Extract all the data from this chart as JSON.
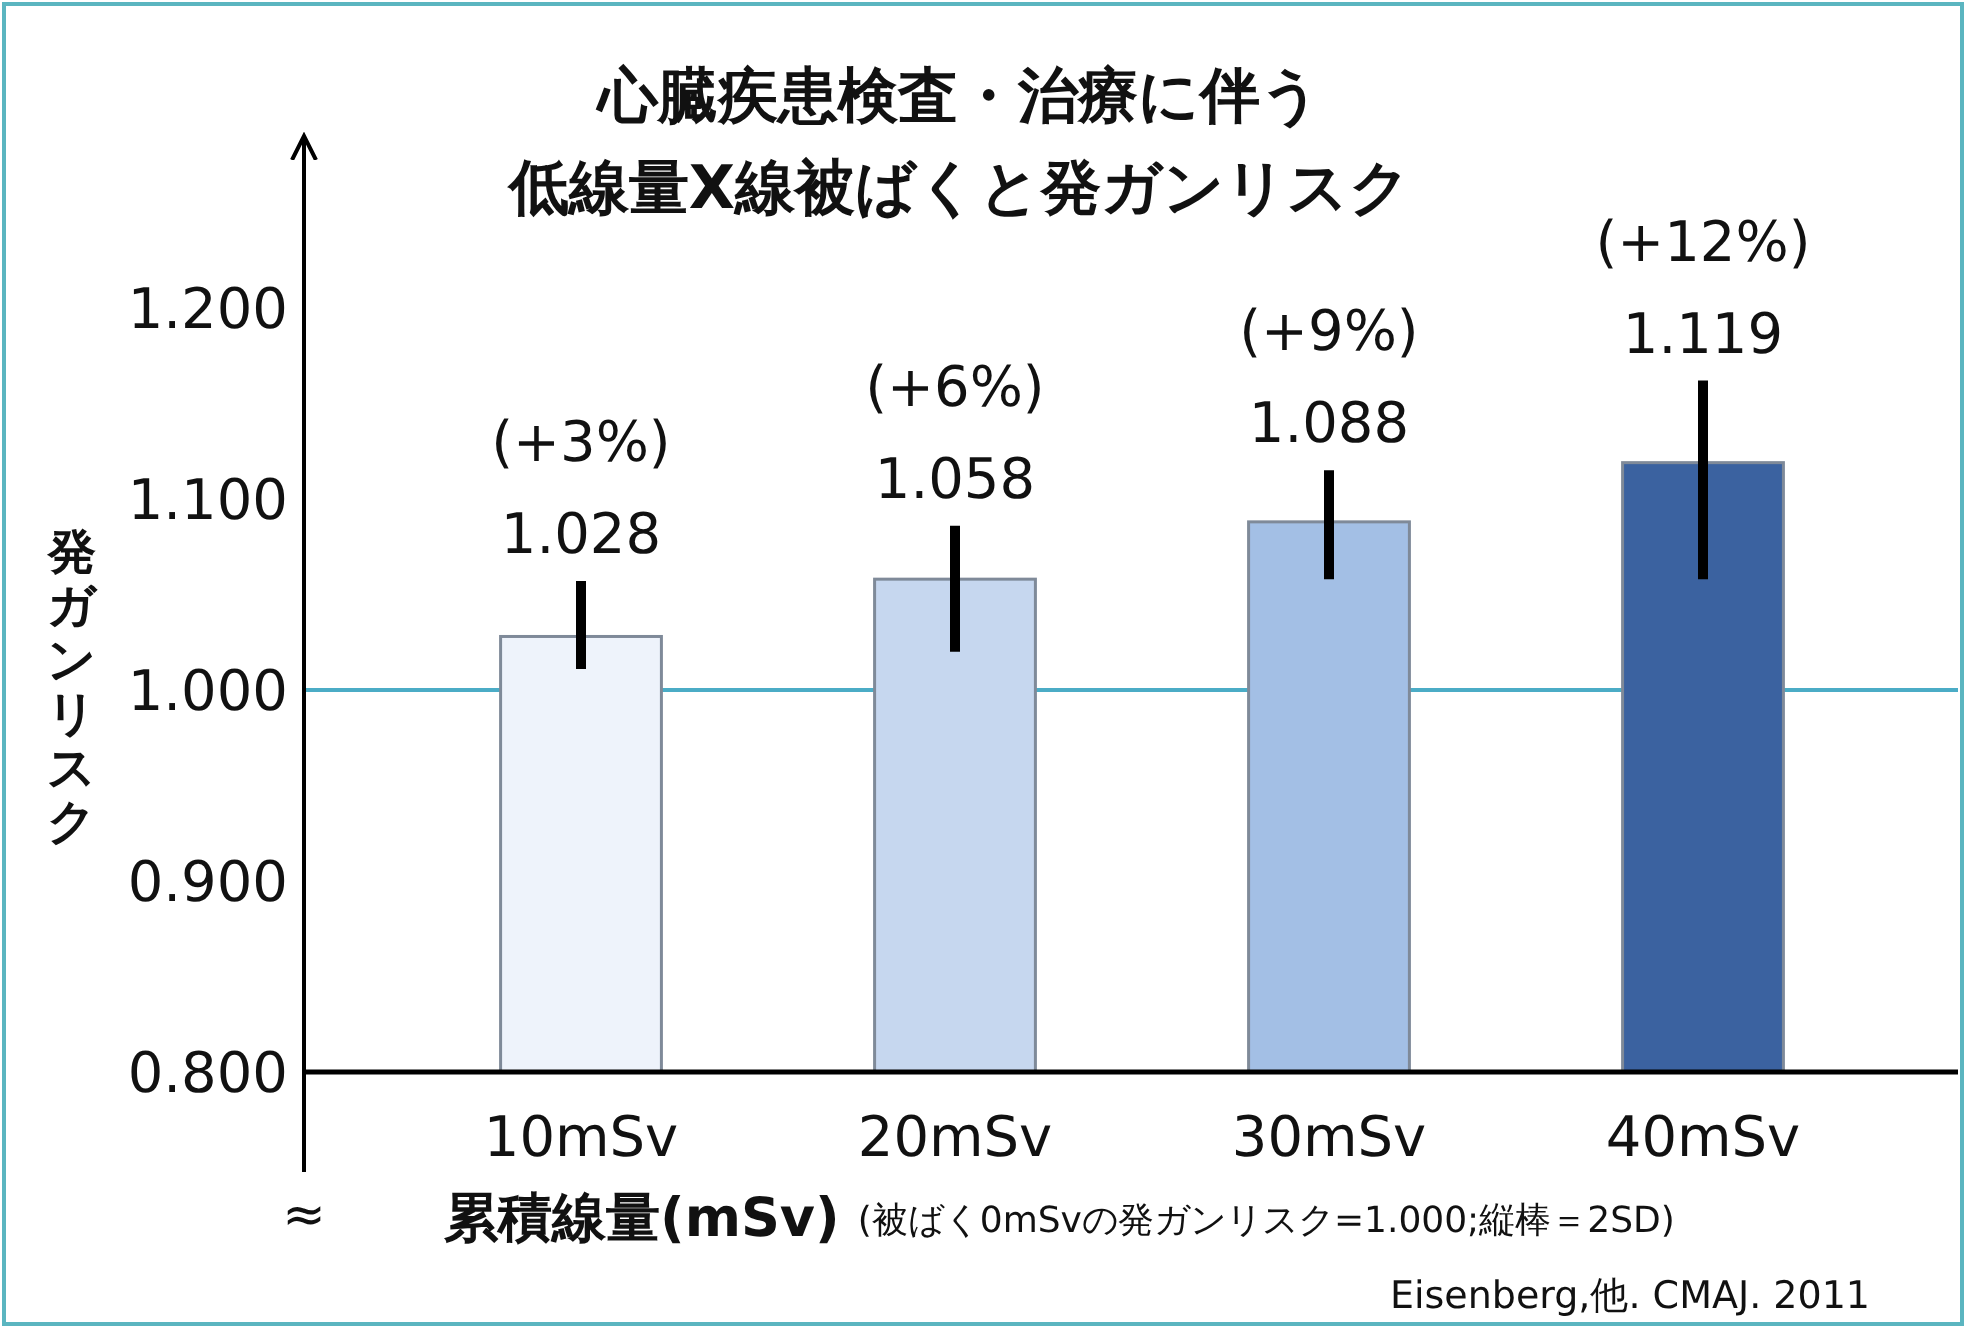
{
  "chart_data": {
    "type": "bar",
    "title": "心臓疾患検査・治療に伴う",
    "subtitle": "低線量X線被ばくと発ガンリスク",
    "ylabel": "発ガンリスク",
    "xlabel": "累積線量(mSv)",
    "categories": [
      "10mSv",
      "20mSv",
      "30mSv",
      "40mSv"
    ],
    "values": [
      1.028,
      1.058,
      1.088,
      1.119
    ],
    "colors": [
      "#eef3fb",
      "#c6d7ef",
      "#a3bfe5",
      "#3b62a0"
    ],
    "errors": [
      [
        1.011,
        1.057
      ],
      [
        1.02,
        1.086
      ],
      [
        1.058,
        1.115
      ],
      [
        1.058,
        1.162
      ]
    ],
    "value_labels": [
      "(+3%)\n1.028",
      "(+6%)\n1.058",
      "(+9%)\n1.088",
      "(+12%)\n1.119"
    ],
    "ylim": [
      0.8,
      1.29
    ],
    "yticks": [
      {
        "value": 0.8,
        "label": "0.800"
      },
      {
        "value": 0.9,
        "label": "0.900"
      },
      {
        "value": 1.0,
        "label": "1.000"
      },
      {
        "value": 1.1,
        "label": "1.100"
      },
      {
        "value": 1.2,
        "label": "1.200"
      }
    ],
    "ref_lines": [
      {
        "axis": "y",
        "value": 1.0,
        "color": "#4bacc6"
      }
    ],
    "annotations": [
      "≈",
      "(被ばく0mSvの発ガンリスク=1.000;縦棒＝2SD)",
      "Eisenberg,他. CMAJ. 2011"
    ],
    "grid": false
  }
}
